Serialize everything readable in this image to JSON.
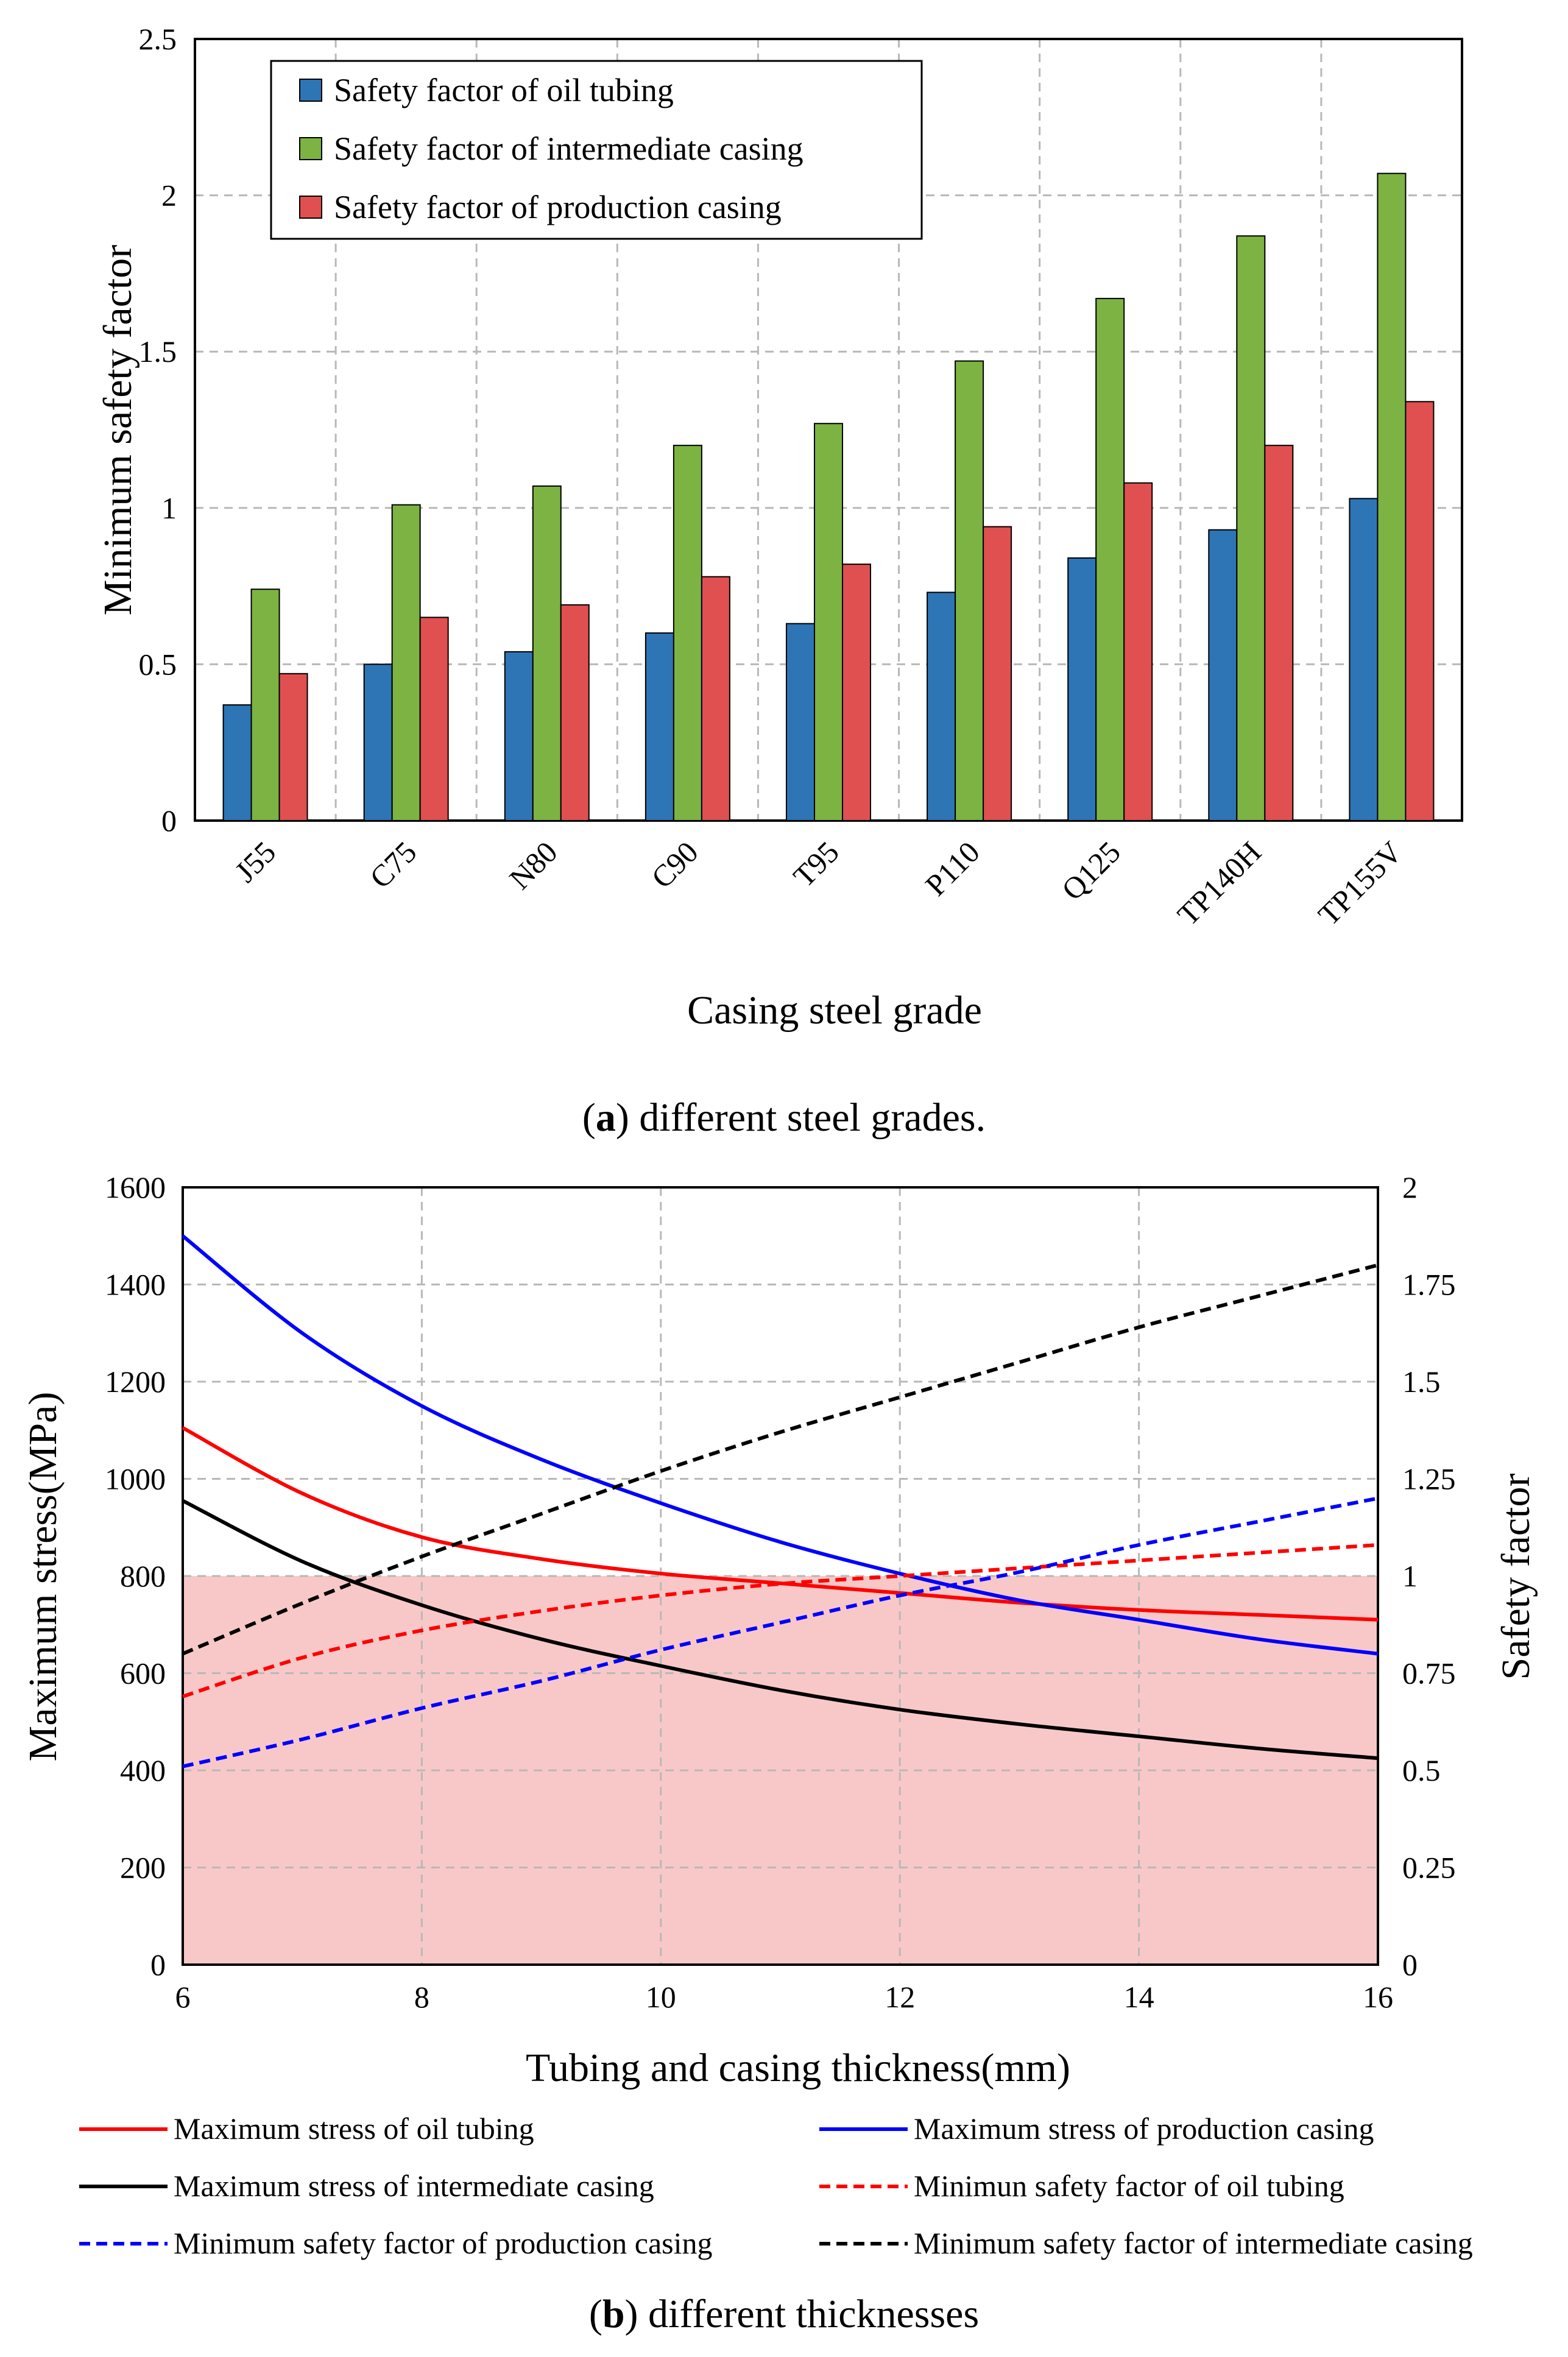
{
  "chart_data": [
    {
      "type": "bar",
      "title": "",
      "xlabel": "Casing steel grade",
      "ylabel": "Minimum safety factor",
      "ylim": [
        0,
        2.5
      ],
      "yticks": [
        "0",
        "0.5",
        "1",
        "1.5",
        "2",
        "2.5"
      ],
      "categories": [
        "J55",
        "C75",
        "N80",
        "C90",
        "T95",
        "P110",
        "Q125",
        "TP140H",
        "TP155V"
      ],
      "series": [
        {
          "name": "Safety factor of oil tubing",
          "color": "#2e75b6",
          "values": [
            0.37,
            0.5,
            0.54,
            0.6,
            0.63,
            0.73,
            0.84,
            0.93,
            1.03
          ]
        },
        {
          "name": "Safety factor of intermediate casing",
          "color": "#7cb342",
          "values": [
            0.74,
            1.01,
            1.07,
            1.2,
            1.27,
            1.47,
            1.67,
            1.87,
            2.07
          ]
        },
        {
          "name": "Safety factor of production casing",
          "color": "#e05050",
          "values": [
            0.47,
            0.65,
            0.69,
            0.78,
            0.82,
            0.94,
            1.08,
            1.2,
            1.34
          ]
        }
      ],
      "legend_position": "top-left",
      "caption_label": "a",
      "caption_text": ") different steel grades.",
      "caption_open": "("
    },
    {
      "type": "line",
      "title": "",
      "xlabel": "Tubing and casing thickness(mm)",
      "ylabel": "Maximum stress(MPa)",
      "y2label": "Safety factor",
      "xlim": [
        6,
        16
      ],
      "ylim": [
        0,
        1600
      ],
      "y2lim": [
        0,
        2
      ],
      "xticks": [
        "6",
        "8",
        "10",
        "12",
        "14",
        "16"
      ],
      "yticks": [
        "0",
        "200",
        "400",
        "600",
        "800",
        "1000",
        "1200",
        "1400",
        "1600"
      ],
      "y2ticks": [
        "0",
        "0.25",
        "0.5",
        "0.75",
        "1",
        "1.25",
        "1.5",
        "1.75",
        "2"
      ],
      "shaded_region": {
        "y_from": 0,
        "y_to": 800,
        "color": "#f8c8c8"
      },
      "x": [
        6,
        7,
        8,
        9,
        10,
        11,
        12,
        13,
        14,
        15,
        16
      ],
      "series": [
        {
          "name": "Maximum stress of oil tubing",
          "axis": "left",
          "color": "#ff0000",
          "style": "solid",
          "values": [
            1105,
            970,
            880,
            835,
            805,
            785,
            765,
            745,
            730,
            720,
            710
          ]
        },
        {
          "name": "Maximum stress of production casing",
          "axis": "left",
          "color": "#0000ff",
          "style": "solid",
          "values": [
            1500,
            1300,
            1150,
            1040,
            950,
            870,
            805,
            750,
            710,
            670,
            640
          ]
        },
        {
          "name": "Maximum stress of intermediate casing",
          "axis": "left",
          "color": "#000000",
          "style": "solid",
          "values": [
            955,
            830,
            740,
            670,
            615,
            565,
            525,
            495,
            470,
            445,
            425
          ]
        },
        {
          "name": "Minimun safety factor of oil tubing",
          "axis": "right",
          "color": "#ff0000",
          "style": "dashed",
          "values": [
            0.69,
            0.79,
            0.86,
            0.91,
            0.95,
            0.98,
            1.0,
            1.02,
            1.04,
            1.06,
            1.08
          ]
        },
        {
          "name": "Minimum safety factor of production casing",
          "axis": "right",
          "color": "#0000ff",
          "style": "dashed",
          "values": [
            0.51,
            0.58,
            0.66,
            0.73,
            0.81,
            0.88,
            0.95,
            1.01,
            1.08,
            1.14,
            1.2
          ]
        },
        {
          "name": "Minimum safety factor of intermediate casing",
          "axis": "right",
          "color": "#000000",
          "style": "dashed",
          "values": [
            0.8,
            0.93,
            1.05,
            1.16,
            1.27,
            1.37,
            1.46,
            1.55,
            1.64,
            1.72,
            1.8
          ]
        }
      ],
      "legend_position": "bottom",
      "caption_label": "b",
      "caption_text": ") different thicknesses",
      "caption_open": "("
    }
  ]
}
